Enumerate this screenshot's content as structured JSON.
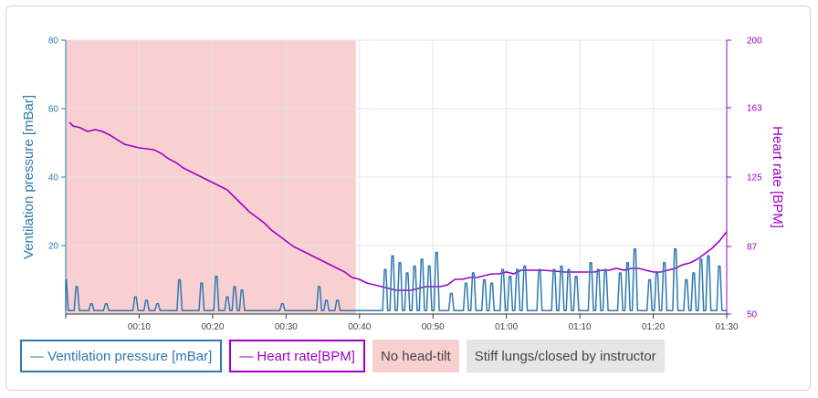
{
  "colors": {
    "ventilation": "#2e78b0",
    "heart_rate": "#a000c8",
    "no_head_tilt": "#f8d0d2",
    "stiff_lungs": "#e6e6e6",
    "grid": "#e4e4e4"
  },
  "legend": {
    "ventilation": "— Ventilation pressure [mBar]",
    "heart_rate": "— Heart rate[BPM]",
    "no_head_tilt": "No head-tilt",
    "stiff_lungs": "Stiff lungs/closed by instructor"
  },
  "chart_data": {
    "type": "line",
    "x_unit": "mm:ss",
    "x_range": [
      "00:00",
      "01:30"
    ],
    "x_ticks": [
      "00:10",
      "00:20",
      "00:30",
      "00:40",
      "00:50",
      "01:00",
      "01:10",
      "01:20",
      "01:30"
    ],
    "y_left": {
      "label": "Ventilation pressure [mBar]",
      "range": [
        0,
        80
      ],
      "ticks": [
        "20",
        "40",
        "60",
        "80"
      ]
    },
    "y_right": {
      "label": "Heart rate [BPM]",
      "range": [
        50,
        200
      ],
      "ticks": [
        "50",
        "87",
        "125",
        "163",
        "200"
      ]
    },
    "grid": true,
    "shaded_regions": [
      {
        "label": "No head-tilt",
        "start": "00:00",
        "end": "00:39.5"
      }
    ],
    "series": [
      {
        "name": "Heart rate[BPM]",
        "axis": "right",
        "points": [
          [
            "00:00.5",
            155
          ],
          [
            "00:01",
            153
          ],
          [
            "00:02",
            152
          ],
          [
            "00:03",
            150
          ],
          [
            "00:04",
            151
          ],
          [
            "00:05",
            150
          ],
          [
            "00:06",
            148
          ],
          [
            "00:08",
            143
          ],
          [
            "00:10",
            141
          ],
          [
            "00:12",
            140
          ],
          [
            "00:13",
            138
          ],
          [
            "00:14",
            135
          ],
          [
            "00:15",
            133
          ],
          [
            "00:16",
            130
          ],
          [
            "00:17",
            128
          ],
          [
            "00:18",
            126
          ],
          [
            "00:19",
            124
          ],
          [
            "00:20",
            122
          ],
          [
            "00:21",
            120
          ],
          [
            "00:22",
            118
          ],
          [
            "00:23",
            114
          ],
          [
            "00:24",
            110
          ],
          [
            "00:25",
            106
          ],
          [
            "00:26",
            103
          ],
          [
            "00:27",
            100
          ],
          [
            "00:28",
            96
          ],
          [
            "00:29",
            93
          ],
          [
            "00:30",
            90
          ],
          [
            "00:31",
            87
          ],
          [
            "00:32",
            85
          ],
          [
            "00:33",
            83
          ],
          [
            "00:34",
            81
          ],
          [
            "00:35",
            79
          ],
          [
            "00:36",
            77
          ],
          [
            "00:37",
            75
          ],
          [
            "00:38",
            73
          ],
          [
            "00:39",
            70
          ],
          [
            "00:40",
            69
          ],
          [
            "00:41",
            67
          ],
          [
            "00:42",
            66
          ],
          [
            "00:43",
            65
          ],
          [
            "00:44",
            64
          ],
          [
            "00:45",
            63
          ],
          [
            "00:46",
            63
          ],
          [
            "00:47",
            63
          ],
          [
            "00:48",
            64
          ],
          [
            "00:49",
            65
          ],
          [
            "00:50",
            65
          ],
          [
            "00:51",
            65
          ],
          [
            "00:52",
            66
          ],
          [
            "00:53",
            69
          ],
          [
            "00:54",
            69
          ],
          [
            "00:55",
            70
          ],
          [
            "00:56",
            70
          ],
          [
            "00:57",
            71
          ],
          [
            "00:58",
            72
          ],
          [
            "00:59",
            72
          ],
          [
            "01:00",
            73
          ],
          [
            "01:01",
            72
          ],
          [
            "01:02",
            74
          ],
          [
            "01:03",
            74
          ],
          [
            "01:05",
            74
          ],
          [
            "01:08",
            73
          ],
          [
            "01:10",
            73
          ],
          [
            "01:12",
            73
          ],
          [
            "01:13",
            74
          ],
          [
            "01:14",
            74
          ],
          [
            "01:15",
            75
          ],
          [
            "01:16",
            74
          ],
          [
            "01:17",
            75
          ],
          [
            "01:18",
            75
          ],
          [
            "01:19",
            74
          ],
          [
            "01:20",
            73
          ],
          [
            "01:21",
            73
          ],
          [
            "01:22",
            74
          ],
          [
            "01:23",
            75
          ],
          [
            "01:24",
            77
          ],
          [
            "01:25",
            78
          ],
          [
            "01:26",
            80
          ],
          [
            "01:27",
            83
          ],
          [
            "01:28",
            86
          ],
          [
            "01:29",
            90
          ],
          [
            "01:30",
            95
          ]
        ]
      },
      {
        "name": "Ventilation pressure [mBar]",
        "axis": "left",
        "baseline": 1,
        "peaks": [
          [
            "00:00",
            10
          ],
          [
            "00:01.5",
            8
          ],
          [
            "00:03.5",
            3
          ],
          [
            "00:05.5",
            3
          ],
          [
            "00:09.5",
            5
          ],
          [
            "00:11",
            4
          ],
          [
            "00:12.5",
            3
          ],
          [
            "00:15.5",
            10
          ],
          [
            "00:18.5",
            9
          ],
          [
            "00:20.5",
            11
          ],
          [
            "00:22",
            5
          ],
          [
            "00:23",
            8
          ],
          [
            "00:24",
            7
          ],
          [
            "00:29.5",
            3
          ],
          [
            "00:34.5",
            8
          ],
          [
            "00:35.5",
            4
          ],
          [
            "00:37",
            4
          ],
          [
            "00:43.5",
            13
          ],
          [
            "00:44.5",
            17
          ],
          [
            "00:45.5",
            15
          ],
          [
            "00:46.5",
            12
          ],
          [
            "00:47.5",
            14
          ],
          [
            "00:48.5",
            16
          ],
          [
            "00:49.5",
            14
          ],
          [
            "00:50.5",
            18
          ],
          [
            "00:52.5",
            6
          ],
          [
            "00:54.5",
            9
          ],
          [
            "00:55.5",
            12
          ],
          [
            "00:57",
            10
          ],
          [
            "00:58",
            9
          ],
          [
            "00:59.5",
            13
          ],
          [
            "01:00.5",
            11
          ],
          [
            "01:01.5",
            13
          ],
          [
            "01:02.5",
            14
          ],
          [
            "01:04.5",
            13
          ],
          [
            "01:06.5",
            13
          ],
          [
            "01:07.5",
            14
          ],
          [
            "01:08.5",
            13
          ],
          [
            "01:09.5",
            11
          ],
          [
            "01:11.5",
            15
          ],
          [
            "01:12.5",
            13
          ],
          [
            "01:13.5",
            13
          ],
          [
            "01:15.5",
            12
          ],
          [
            "01:16.5",
            15
          ],
          [
            "01:17.5",
            19
          ],
          [
            "01:19.5",
            10
          ],
          [
            "01:20.5",
            12
          ],
          [
            "01:21.5",
            15
          ],
          [
            "01:23",
            19
          ],
          [
            "01:24.5",
            10
          ],
          [
            "01:25.5",
            12
          ],
          [
            "01:26.5",
            16
          ],
          [
            "01:27.5",
            17
          ],
          [
            "01:29",
            14
          ]
        ]
      }
    ]
  }
}
